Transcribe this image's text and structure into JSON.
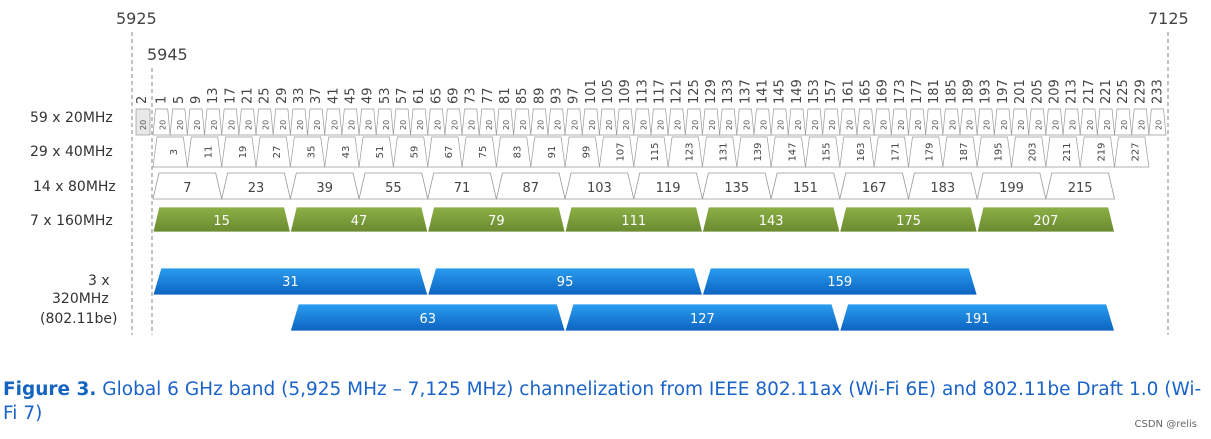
{
  "freq_start": "5925",
  "freq_end": "7125",
  "freq_first": "5945",
  "row_labels": {
    "r20": "59 x 20MHz",
    "r40": "29 x 40MHz",
    "r80": "14 x 80MHz",
    "r160": "7  x 160MHz",
    "r320_a": "3  x",
    "r320_b": "320MHz",
    "r320_c": "(802.11be)"
  },
  "ch20_extra": "2",
  "ch20": [
    "1",
    "5",
    "9",
    "13",
    "17",
    "21",
    "25",
    "29",
    "33",
    "37",
    "41",
    "45",
    "49",
    "53",
    "57",
    "61",
    "65",
    "69",
    "73",
    "77",
    "81",
    "85",
    "89",
    "93",
    "97",
    "101",
    "105",
    "109",
    "113",
    "117",
    "121",
    "125",
    "129",
    "133",
    "137",
    "141",
    "145",
    "149",
    "153",
    "157",
    "161",
    "165",
    "169",
    "173",
    "177",
    "181",
    "185",
    "189",
    "193",
    "197",
    "201",
    "205",
    "209",
    "213",
    "217",
    "221",
    "225",
    "229",
    "233"
  ],
  "ch20_cell_label": "20",
  "ch40": [
    "3",
    "11",
    "19",
    "27",
    "35",
    "43",
    "51",
    "59",
    "67",
    "75",
    "83",
    "91",
    "99",
    "107",
    "115",
    "123",
    "131",
    "139",
    "147",
    "155",
    "163",
    "171",
    "179",
    "187",
    "195",
    "203",
    "211",
    "219",
    "227"
  ],
  "ch80": [
    "7",
    "23",
    "39",
    "55",
    "71",
    "87",
    "103",
    "119",
    "135",
    "151",
    "167",
    "183",
    "199",
    "215"
  ],
  "ch160": [
    "15",
    "47",
    "79",
    "111",
    "143",
    "175",
    "207"
  ],
  "ch320_a": [
    "31",
    "95",
    "159"
  ],
  "ch320_b": [
    "63",
    "127",
    "191"
  ],
  "colors": {
    "green": "#7a9b3a",
    "blue": "#1a7fd8",
    "outline": "#999999",
    "caption": "#1a63c8"
  },
  "caption": {
    "prefix": "Figure 3.",
    "text": " Global 6 GHz band (5,925 MHz – 7,125 MHz) channelization from IEEE 802.11ax (Wi-Fi 6E) and 802.11be Draft 1.0 (Wi-Fi 7)"
  },
  "watermark": "CSDN @relis"
}
